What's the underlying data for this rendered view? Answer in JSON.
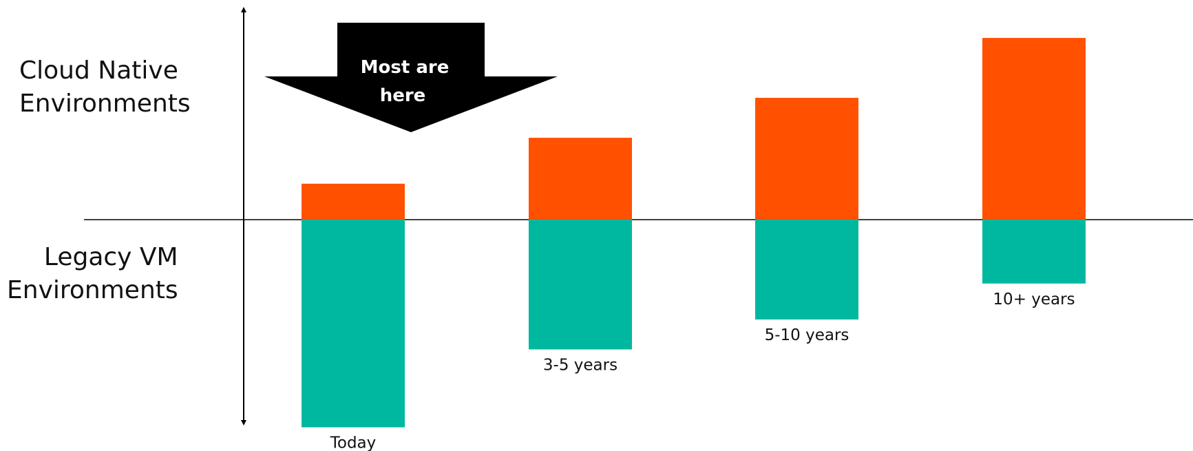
{
  "labels": {
    "top": [
      "Cloud Native",
      "Environments"
    ],
    "bottom": [
      "Legacy VM",
      "Environments"
    ]
  },
  "callout": {
    "lines": [
      "Most are",
      "here"
    ]
  },
  "colors": {
    "cloud_native": "#FF5100",
    "legacy_vm": "#00B8A0",
    "axis": "#000000",
    "callout": "#000000"
  },
  "chart_data": {
    "type": "bar",
    "categories": [
      "Today",
      "3-5 years",
      "5-10 years",
      "10+ years"
    ],
    "series": [
      {
        "name": "Cloud Native Environments",
        "values": [
          1.8,
          4.1,
          6.1,
          9.1
        ]
      },
      {
        "name": "Legacy VM Environments",
        "values": [
          -10.4,
          -6.5,
          -5.0,
          -3.2
        ]
      }
    ],
    "stacked": "diverging",
    "xlabel": "",
    "ylabel": "",
    "ylim": [
      -10.4,
      11.0
    ],
    "grid": false,
    "annotations": [
      {
        "text": "Most are here",
        "target": "Today"
      }
    ]
  }
}
